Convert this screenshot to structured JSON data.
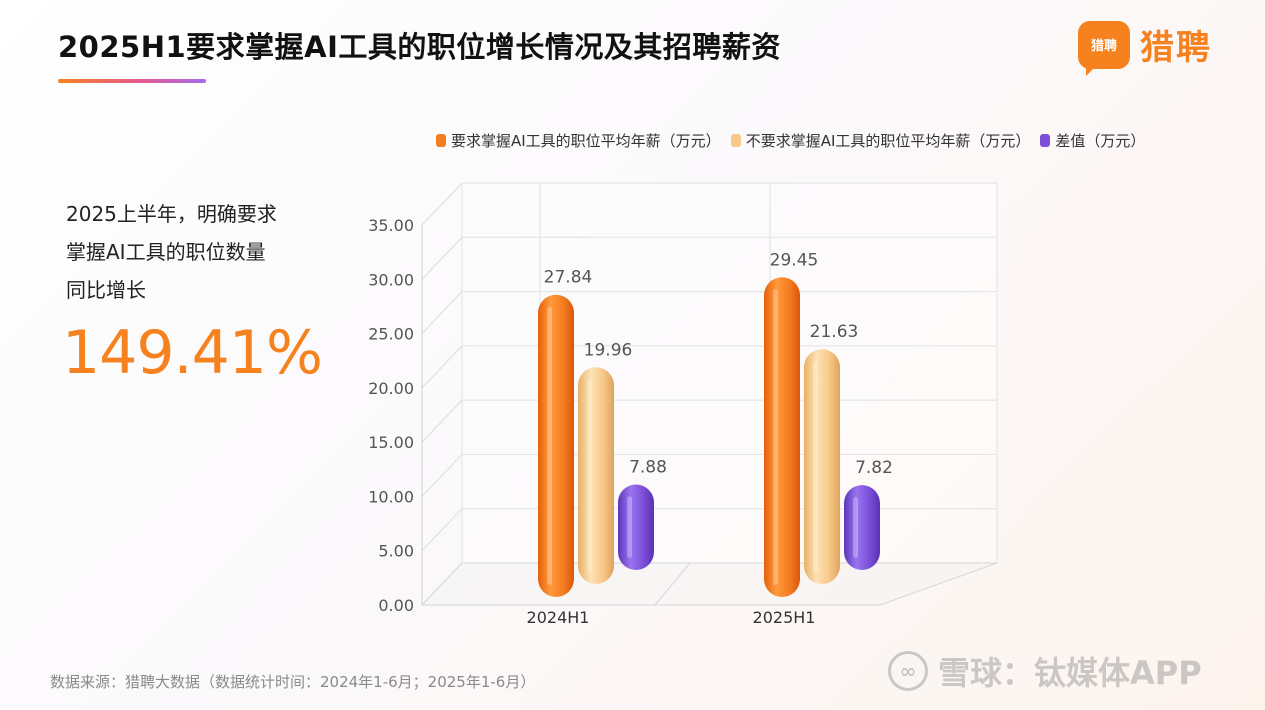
{
  "header": {
    "title": "2025H1要求掌握AI工具的职位增长情况及其招聘薪资",
    "logo_badge": "猎聘",
    "logo_text": "猎聘"
  },
  "left_panel": {
    "lines": [
      "2025上半年，明确要求",
      "掌握AI工具的职位数量",
      "同比增长"
    ],
    "highlight": "149.41%"
  },
  "footer": {
    "source": "数据来源：猎聘大数据（数据统计时间：2024年1-6月；2025年1-6月）",
    "watermark": "雪球：钛媒体APP",
    "watermark_icon": "snowball-icon"
  },
  "colors": {
    "orange": "#f57c20",
    "light_orange": "#f7c98a",
    "purple": "#7b4fd9",
    "accent": "#f6821f"
  },
  "chart_data": {
    "type": "bar",
    "categories": [
      "2024H1",
      "2025H1"
    ],
    "series": [
      {
        "name": "要求掌握AI工具的职位平均年薪（万元）",
        "values": [
          27.84,
          29.45
        ]
      },
      {
        "name": "不要求掌握AI工具的职位平均年薪（万元）",
        "values": [
          19.96,
          21.63
        ]
      },
      {
        "name": "差值（万元）",
        "values": [
          7.88,
          7.82
        ]
      }
    ],
    "value_labels": [
      [
        "27.84",
        "29.45"
      ],
      [
        "19.96",
        "21.63"
      ],
      [
        "7.88",
        "7.82"
      ]
    ],
    "y_ticks": [
      "0.00",
      "5.00",
      "10.00",
      "15.00",
      "20.00",
      "25.00",
      "30.00",
      "35.00"
    ],
    "ylim": [
      0,
      35
    ],
    "grid": true,
    "legend_position": "top",
    "style": "3d-rounded-bars"
  }
}
